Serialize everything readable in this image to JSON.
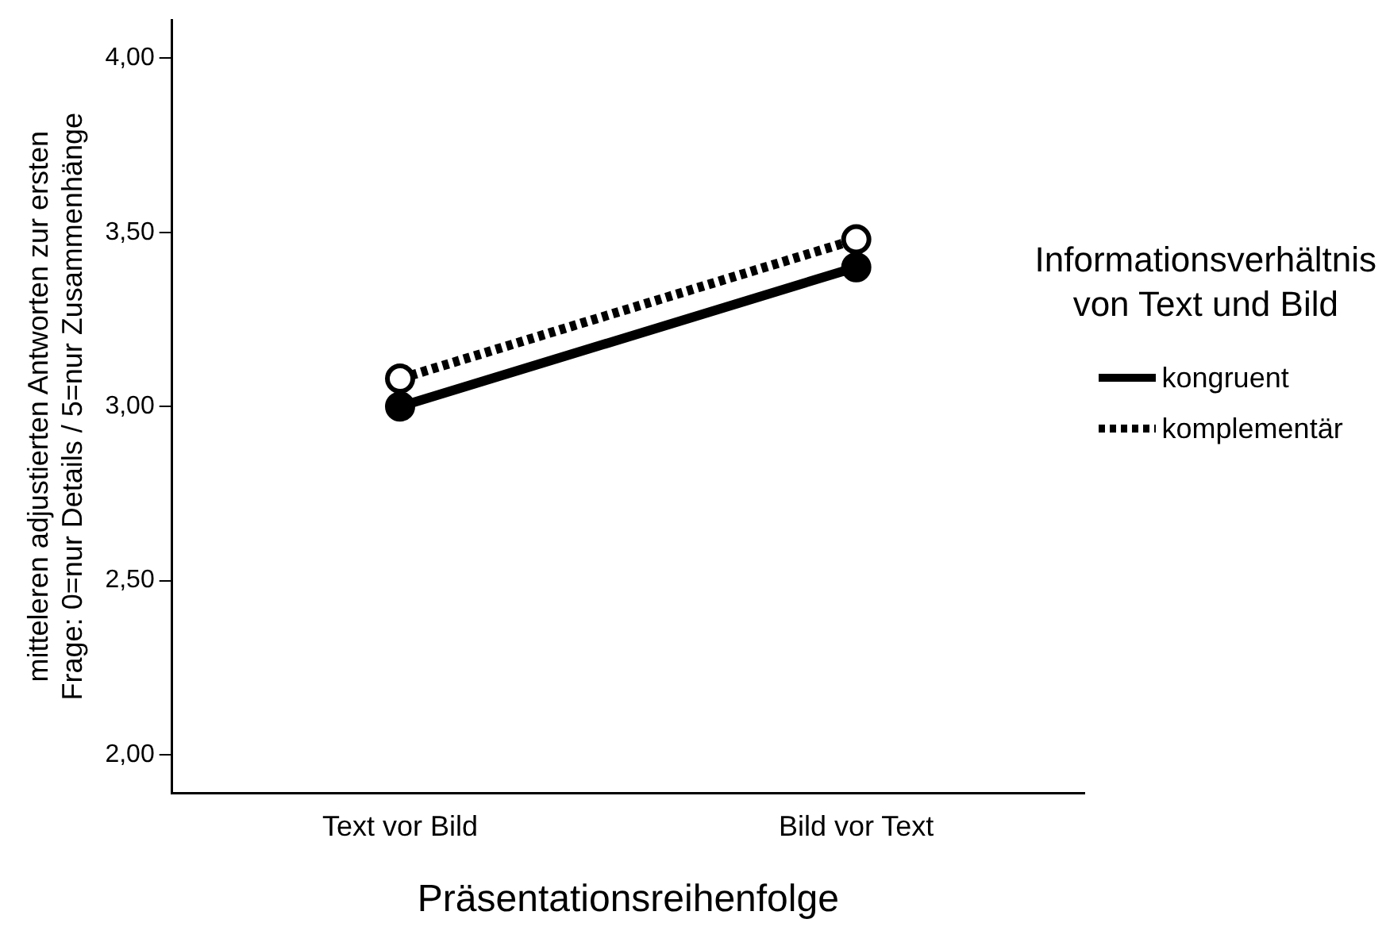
{
  "chart_data": {
    "type": "line",
    "xlabel": "Präsentationsreihenfolge",
    "ylabel": "mitteleren adjustierten Antworten zur ersten\nFrage: 0=nur Details / 5=nur Zusammenhänge",
    "legend_title": "Informationsverhältnis\nvon Text und Bild",
    "legend": "right",
    "marker": "circle",
    "grid": false,
    "categories": [
      "Text vor Bild",
      "Bild vor Text"
    ],
    "ylim": [
      1.89,
      4.11
    ],
    "yticks": [
      {
        "value": 2,
        "label": "2,00"
      },
      {
        "value": 2.5,
        "label": "2,50"
      },
      {
        "value": 3,
        "label": "3,00"
      },
      {
        "value": 3.5,
        "label": "3,50"
      },
      {
        "value": 4,
        "label": "4,00"
      }
    ],
    "series": [
      {
        "name": "kongruent",
        "color": "#000000",
        "values": [
          3.0,
          3.4
        ],
        "line_style": "solid"
      },
      {
        "name": "komplementär",
        "color": "#000000",
        "values": [
          3.08,
          3.48
        ],
        "line_style": "dotted"
      }
    ]
  }
}
